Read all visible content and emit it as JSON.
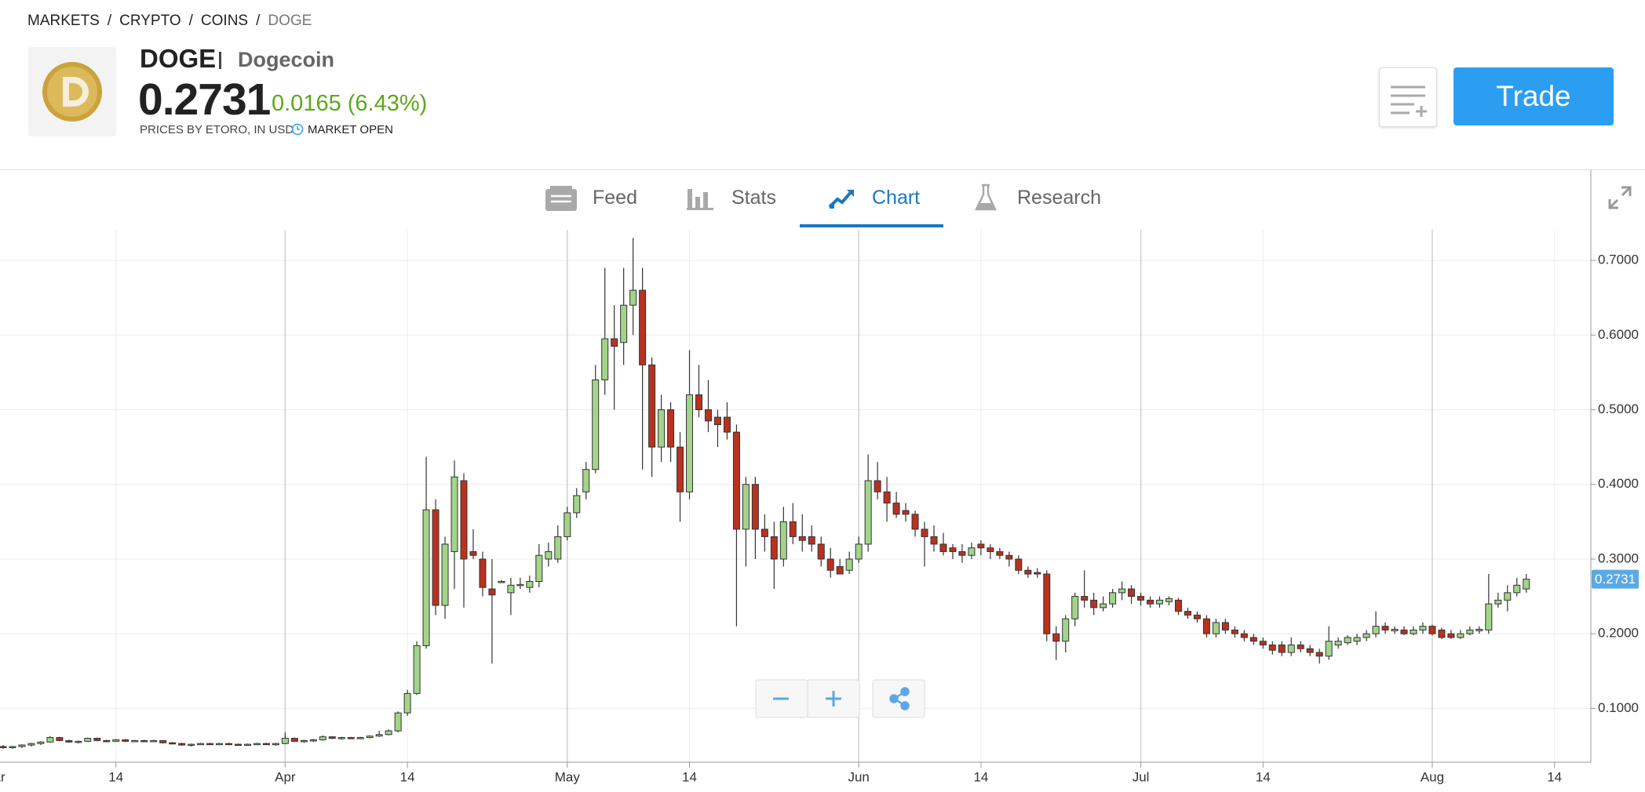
{
  "breadcrumb": {
    "items": [
      "MARKETS",
      "CRYPTO",
      "COINS",
      "DOGE"
    ],
    "separator": "/"
  },
  "header": {
    "symbol": "DOGE",
    "name": "Dogecoin",
    "price": "0.2731",
    "change": "0.0165 (6.43%)",
    "source": "PRICES BY ETORO, IN USD",
    "status": "MARKET OPEN",
    "trade_button": "Trade"
  },
  "tabs": [
    "Feed",
    "Stats",
    "Chart",
    "Research"
  ],
  "chart_data": {
    "type": "candlestick",
    "categories": [
      "Mar",
      null,
      null,
      null,
      null,
      null,
      null,
      null,
      null,
      null,
      null,
      null,
      null,
      "14",
      null,
      null,
      null,
      null,
      null,
      null,
      null,
      null,
      null,
      null,
      null,
      null,
      null,
      null,
      null,
      null,
      null,
      "Apr",
      null,
      null,
      null,
      null,
      null,
      null,
      null,
      null,
      null,
      null,
      null,
      null,
      "14",
      null,
      null,
      null,
      null,
      null,
      null,
      null,
      null,
      null,
      null,
      null,
      null,
      null,
      null,
      null,
      null,
      "May",
      null,
      null,
      null,
      null,
      null,
      null,
      null,
      null,
      null,
      null,
      null,
      null,
      "14",
      null,
      null,
      null,
      null,
      null,
      null,
      null,
      null,
      null,
      null,
      null,
      null,
      null,
      null,
      null,
      null,
      null,
      "Jun",
      null,
      null,
      null,
      null,
      null,
      null,
      null,
      null,
      null,
      null,
      null,
      null,
      "14",
      null,
      null,
      null,
      null,
      null,
      null,
      null,
      null,
      null,
      null,
      null,
      null,
      null,
      null,
      null,
      null,
      "Jul",
      null,
      null,
      null,
      null,
      null,
      null,
      null,
      null,
      null,
      null,
      null,
      null,
      "14",
      null,
      null,
      null,
      null,
      null,
      null,
      null,
      null,
      null,
      null,
      null,
      null,
      null,
      null,
      null,
      null,
      null,
      "Aug",
      null,
      null,
      null,
      null,
      null,
      null,
      null,
      null,
      null,
      null,
      null,
      null,
      "14"
    ],
    "values": [
      [
        0.05,
        0.052,
        0.047,
        0.049
      ],
      [
        0.049,
        0.051,
        0.046,
        0.048
      ],
      [
        0.048,
        0.05,
        0.046,
        0.049
      ],
      [
        0.049,
        0.052,
        0.047,
        0.051
      ],
      [
        0.051,
        0.054,
        0.049,
        0.053
      ],
      [
        0.053,
        0.056,
        0.051,
        0.055
      ],
      [
        0.055,
        0.063,
        0.054,
        0.061
      ],
      [
        0.061,
        0.062,
        0.056,
        0.057
      ],
      [
        0.057,
        0.058,
        0.054,
        0.055
      ],
      [
        0.055,
        0.057,
        0.053,
        0.056
      ],
      [
        0.056,
        0.061,
        0.055,
        0.06
      ],
      [
        0.06,
        0.061,
        0.056,
        0.057
      ],
      [
        0.057,
        0.058,
        0.055,
        0.056
      ],
      [
        0.056,
        0.059,
        0.055,
        0.058
      ],
      [
        0.058,
        0.059,
        0.055,
        0.056
      ],
      [
        0.056,
        0.058,
        0.055,
        0.057
      ],
      [
        0.057,
        0.058,
        0.055,
        0.056
      ],
      [
        0.056,
        0.058,
        0.055,
        0.057
      ],
      [
        0.057,
        0.057,
        0.053,
        0.054
      ],
      [
        0.054,
        0.055,
        0.052,
        0.053
      ],
      [
        0.053,
        0.054,
        0.05,
        0.051
      ],
      [
        0.051,
        0.053,
        0.049,
        0.052
      ],
      [
        0.052,
        0.054,
        0.051,
        0.053
      ],
      [
        0.053,
        0.054,
        0.051,
        0.052
      ],
      [
        0.052,
        0.054,
        0.051,
        0.053
      ],
      [
        0.053,
        0.054,
        0.051,
        0.052
      ],
      [
        0.052,
        0.053,
        0.05,
        0.051
      ],
      [
        0.051,
        0.053,
        0.05,
        0.052
      ],
      [
        0.052,
        0.054,
        0.051,
        0.053
      ],
      [
        0.053,
        0.054,
        0.051,
        0.052
      ],
      [
        0.052,
        0.054,
        0.05,
        0.053
      ],
      [
        0.053,
        0.068,
        0.052,
        0.06
      ],
      [
        0.06,
        0.061,
        0.055,
        0.056
      ],
      [
        0.056,
        0.058,
        0.054,
        0.057
      ],
      [
        0.057,
        0.059,
        0.055,
        0.058
      ],
      [
        0.058,
        0.064,
        0.057,
        0.062
      ],
      [
        0.062,
        0.063,
        0.059,
        0.06
      ],
      [
        0.06,
        0.062,
        0.058,
        0.061
      ],
      [
        0.061,
        0.062,
        0.059,
        0.06
      ],
      [
        0.06,
        0.062,
        0.059,
        0.061
      ],
      [
        0.061,
        0.064,
        0.06,
        0.063
      ],
      [
        0.063,
        0.07,
        0.062,
        0.065
      ],
      [
        0.065,
        0.072,
        0.064,
        0.07
      ],
      [
        0.07,
        0.096,
        0.068,
        0.094
      ],
      [
        0.094,
        0.125,
        0.09,
        0.12
      ],
      [
        0.12,
        0.19,
        0.118,
        0.184
      ],
      [
        0.184,
        0.437,
        0.18,
        0.366
      ],
      [
        0.366,
        0.38,
        0.225,
        0.238
      ],
      [
        0.238,
        0.33,
        0.22,
        0.32
      ],
      [
        0.31,
        0.432,
        0.26,
        0.41
      ],
      [
        0.405,
        0.415,
        0.235,
        0.3
      ],
      [
        0.31,
        0.34,
        0.3,
        0.305
      ],
      [
        0.3,
        0.31,
        0.25,
        0.262
      ],
      [
        0.26,
        0.3,
        0.16,
        0.252
      ],
      [
        0.27,
        0.272,
        0.268,
        0.27
      ],
      [
        0.255,
        0.275,
        0.225,
        0.265
      ],
      [
        0.265,
        0.275,
        0.26,
        0.266
      ],
      [
        0.262,
        0.278,
        0.255,
        0.27
      ],
      [
        0.27,
        0.32,
        0.262,
        0.305
      ],
      [
        0.3,
        0.322,
        0.29,
        0.31
      ],
      [
        0.3,
        0.345,
        0.295,
        0.33
      ],
      [
        0.33,
        0.37,
        0.325,
        0.362
      ],
      [
        0.362,
        0.395,
        0.355,
        0.385
      ],
      [
        0.39,
        0.43,
        0.38,
        0.42
      ],
      [
        0.42,
        0.56,
        0.415,
        0.54
      ],
      [
        0.54,
        0.69,
        0.52,
        0.595
      ],
      [
        0.595,
        0.64,
        0.5,
        0.585
      ],
      [
        0.59,
        0.69,
        0.56,
        0.64
      ],
      [
        0.64,
        0.73,
        0.6,
        0.66
      ],
      [
        0.66,
        0.69,
        0.42,
        0.56
      ],
      [
        0.56,
        0.57,
        0.41,
        0.45
      ],
      [
        0.45,
        0.52,
        0.43,
        0.5
      ],
      [
        0.5,
        0.51,
        0.43,
        0.45
      ],
      [
        0.45,
        0.47,
        0.35,
        0.39
      ],
      [
        0.39,
        0.58,
        0.38,
        0.52
      ],
      [
        0.52,
        0.56,
        0.49,
        0.5
      ],
      [
        0.5,
        0.54,
        0.47,
        0.485
      ],
      [
        0.49,
        0.5,
        0.45,
        0.48
      ],
      [
        0.49,
        0.51,
        0.46,
        0.47
      ],
      [
        0.47,
        0.48,
        0.21,
        0.34
      ],
      [
        0.34,
        0.41,
        0.29,
        0.4
      ],
      [
        0.4,
        0.41,
        0.3,
        0.34
      ],
      [
        0.34,
        0.36,
        0.31,
        0.33
      ],
      [
        0.33,
        0.35,
        0.26,
        0.3
      ],
      [
        0.3,
        0.37,
        0.29,
        0.35
      ],
      [
        0.35,
        0.375,
        0.32,
        0.33
      ],
      [
        0.33,
        0.36,
        0.31,
        0.325
      ],
      [
        0.33,
        0.345,
        0.31,
        0.32
      ],
      [
        0.32,
        0.33,
        0.29,
        0.3
      ],
      [
        0.3,
        0.315,
        0.275,
        0.285
      ],
      [
        0.29,
        0.3,
        0.28,
        0.28
      ],
      [
        0.285,
        0.31,
        0.28,
        0.3
      ],
      [
        0.3,
        0.33,
        0.295,
        0.32
      ],
      [
        0.32,
        0.44,
        0.31,
        0.405
      ],
      [
        0.405,
        0.43,
        0.38,
        0.39
      ],
      [
        0.39,
        0.41,
        0.35,
        0.375
      ],
      [
        0.375,
        0.39,
        0.355,
        0.36
      ],
      [
        0.365,
        0.375,
        0.35,
        0.36
      ],
      [
        0.36,
        0.365,
        0.33,
        0.34
      ],
      [
        0.34,
        0.35,
        0.29,
        0.33
      ],
      [
        0.33,
        0.345,
        0.31,
        0.32
      ],
      [
        0.32,
        0.335,
        0.305,
        0.31
      ],
      [
        0.315,
        0.32,
        0.3,
        0.31
      ],
      [
        0.31,
        0.32,
        0.295,
        0.305
      ],
      [
        0.305,
        0.322,
        0.3,
        0.315
      ],
      [
        0.32,
        0.325,
        0.305,
        0.315
      ],
      [
        0.315,
        0.32,
        0.3,
        0.31
      ],
      [
        0.31,
        0.315,
        0.3,
        0.305
      ],
      [
        0.305,
        0.31,
        0.29,
        0.3
      ],
      [
        0.3,
        0.305,
        0.28,
        0.285
      ],
      [
        0.285,
        0.29,
        0.275,
        0.28
      ],
      [
        0.282,
        0.288,
        0.275,
        0.28
      ],
      [
        0.28,
        0.285,
        0.19,
        0.2
      ],
      [
        0.2,
        0.21,
        0.165,
        0.19
      ],
      [
        0.19,
        0.225,
        0.175,
        0.22
      ],
      [
        0.22,
        0.255,
        0.21,
        0.25
      ],
      [
        0.25,
        0.285,
        0.235,
        0.245
      ],
      [
        0.245,
        0.255,
        0.225,
        0.235
      ],
      [
        0.235,
        0.25,
        0.23,
        0.24
      ],
      [
        0.24,
        0.26,
        0.235,
        0.255
      ],
      [
        0.255,
        0.27,
        0.245,
        0.26
      ],
      [
        0.26,
        0.265,
        0.24,
        0.25
      ],
      [
        0.25,
        0.255,
        0.238,
        0.245
      ],
      [
        0.245,
        0.25,
        0.235,
        0.24
      ],
      [
        0.24,
        0.25,
        0.235,
        0.245
      ],
      [
        0.243,
        0.25,
        0.238,
        0.247
      ],
      [
        0.245,
        0.248,
        0.225,
        0.23
      ],
      [
        0.23,
        0.235,
        0.22,
        0.225
      ],
      [
        0.225,
        0.23,
        0.215,
        0.22
      ],
      [
        0.22,
        0.225,
        0.195,
        0.2
      ],
      [
        0.2,
        0.22,
        0.195,
        0.215
      ],
      [
        0.215,
        0.22,
        0.2,
        0.205
      ],
      [
        0.205,
        0.21,
        0.195,
        0.2
      ],
      [
        0.2,
        0.205,
        0.19,
        0.195
      ],
      [
        0.195,
        0.2,
        0.185,
        0.19
      ],
      [
        0.19,
        0.195,
        0.18,
        0.185
      ],
      [
        0.185,
        0.19,
        0.172,
        0.178
      ],
      [
        0.185,
        0.19,
        0.17,
        0.175
      ],
      [
        0.175,
        0.195,
        0.17,
        0.185
      ],
      [
        0.185,
        0.19,
        0.175,
        0.18
      ],
      [
        0.18,
        0.185,
        0.17,
        0.175
      ],
      [
        0.175,
        0.18,
        0.16,
        0.17
      ],
      [
        0.17,
        0.21,
        0.165,
        0.19
      ],
      [
        0.185,
        0.195,
        0.18,
        0.19
      ],
      [
        0.188,
        0.198,
        0.185,
        0.195
      ],
      [
        0.19,
        0.2,
        0.185,
        0.195
      ],
      [
        0.195,
        0.205,
        0.19,
        0.2
      ],
      [
        0.2,
        0.23,
        0.195,
        0.21
      ],
      [
        0.21,
        0.215,
        0.2,
        0.205
      ],
      [
        0.204,
        0.21,
        0.2,
        0.206
      ],
      [
        0.205,
        0.21,
        0.198,
        0.2
      ],
      [
        0.2,
        0.21,
        0.198,
        0.205
      ],
      [
        0.205,
        0.215,
        0.2,
        0.21
      ],
      [
        0.21,
        0.212,
        0.198,
        0.2
      ],
      [
        0.205,
        0.208,
        0.193,
        0.195
      ],
      [
        0.2,
        0.205,
        0.193,
        0.195
      ],
      [
        0.195,
        0.205,
        0.193,
        0.2
      ],
      [
        0.2,
        0.21,
        0.198,
        0.205
      ],
      [
        0.204,
        0.21,
        0.2,
        0.206
      ],
      [
        0.205,
        0.28,
        0.2,
        0.24
      ],
      [
        0.24,
        0.255,
        0.235,
        0.245
      ],
      [
        0.245,
        0.265,
        0.23,
        0.255
      ],
      [
        0.255,
        0.275,
        0.25,
        0.265
      ],
      [
        0.26,
        0.28,
        0.255,
        0.2731
      ],
      null,
      null,
      null
    ],
    "up_color": "#a3d48a",
    "down_color": "#b8321f",
    "ylim": [
      0.028,
      0.741
    ],
    "yticks": [
      {
        "value": 0.1,
        "label": "0.1000"
      },
      {
        "value": 0.2,
        "label": "0.2000"
      },
      {
        "value": 0.3,
        "label": "0.3000"
      },
      {
        "value": 0.4,
        "label": "0.4000"
      },
      {
        "value": 0.5,
        "label": "0.5000"
      },
      {
        "value": 0.6,
        "label": "0.6000"
      },
      {
        "value": 0.7,
        "label": "0.7000"
      }
    ],
    "current_price": 0.2731,
    "grid": true
  }
}
